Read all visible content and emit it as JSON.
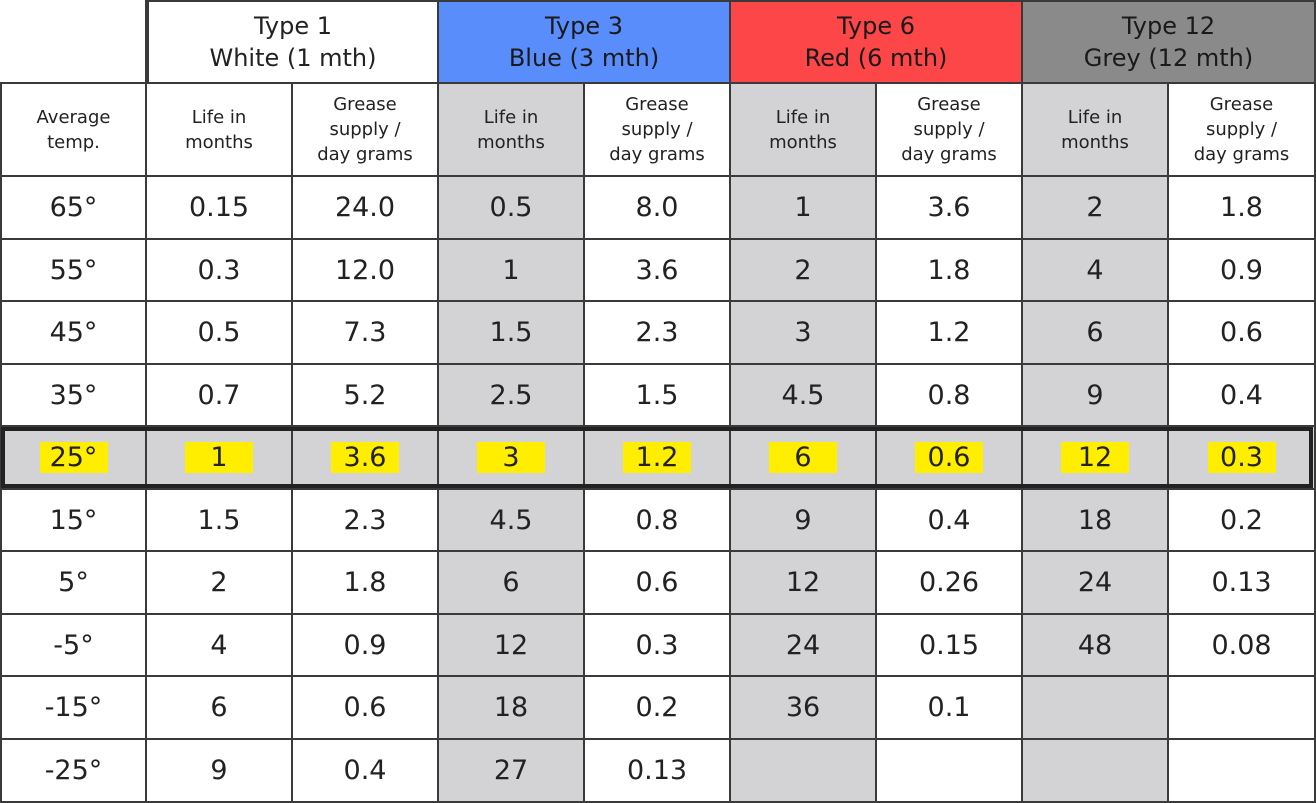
{
  "table": {
    "groups": [
      {
        "label": "Type 1\nWhite (1 mth)",
        "color": "#ffffff",
        "text_color": "#222222"
      },
      {
        "label": "Type 3\nBlue (3 mth)",
        "color": "#5a8dfc",
        "text_color": "#1a1a1a"
      },
      {
        "label": "Type 6\nRed (6 mth)",
        "color": "#fc4648",
        "text_color": "#1a1a1a"
      },
      {
        "label": "Type 12\nGrey (12 mth)",
        "color": "#8a8a8a",
        "text_color": "#1a1a1a"
      }
    ],
    "col_headers": [
      "Average\ntemp.",
      "Life in\nmonths",
      "Grease\nsupply /\nday grams",
      "Life in\nmonths",
      "Grease\nsupply /\nday grams",
      "Life in\nmonths",
      "Grease\nsupply /\nday grams",
      "Life in\nmonths",
      "Grease\nsupply /\nday grams"
    ],
    "rows": [
      [
        "65°",
        "0.15",
        "24.0",
        "0.5",
        "8.0",
        "1",
        "3.6",
        "2",
        "1.8"
      ],
      [
        "55°",
        "0.3",
        "12.0",
        "1",
        "3.6",
        "2",
        "1.8",
        "4",
        "0.9"
      ],
      [
        "45°",
        "0.5",
        "7.3",
        "1.5",
        "2.3",
        "3",
        "1.2",
        "6",
        "0.6"
      ],
      [
        "35°",
        "0.7",
        "5.2",
        "2.5",
        "1.5",
        "4.5",
        "0.8",
        "9",
        "0.4"
      ],
      [
        "25°",
        "1",
        "3.6",
        "3",
        "1.2",
        "6",
        "0.6",
        "12",
        "0.3"
      ],
      [
        "15°",
        "1.5",
        "2.3",
        "4.5",
        "0.8",
        "9",
        "0.4",
        "18",
        "0.2"
      ],
      [
        "5°",
        "2",
        "1.8",
        "6",
        "0.6",
        "12",
        "0.26",
        "24",
        "0.13"
      ],
      [
        "-5°",
        "4",
        "0.9",
        "12",
        "0.3",
        "24",
        "0.15",
        "48",
        "0.08"
      ],
      [
        "-15°",
        "6",
        "0.6",
        "18",
        "0.2",
        "36",
        "0.1",
        "",
        ""
      ],
      [
        "-25°",
        "9",
        "0.4",
        "27",
        "0.13",
        "",
        "",
        "",
        ""
      ]
    ],
    "highlight_row": 4,
    "colors": {
      "shaded_column": "#d3d3d5",
      "highlight_marker": "#ffee00",
      "border": "#3a3a3a"
    }
  }
}
